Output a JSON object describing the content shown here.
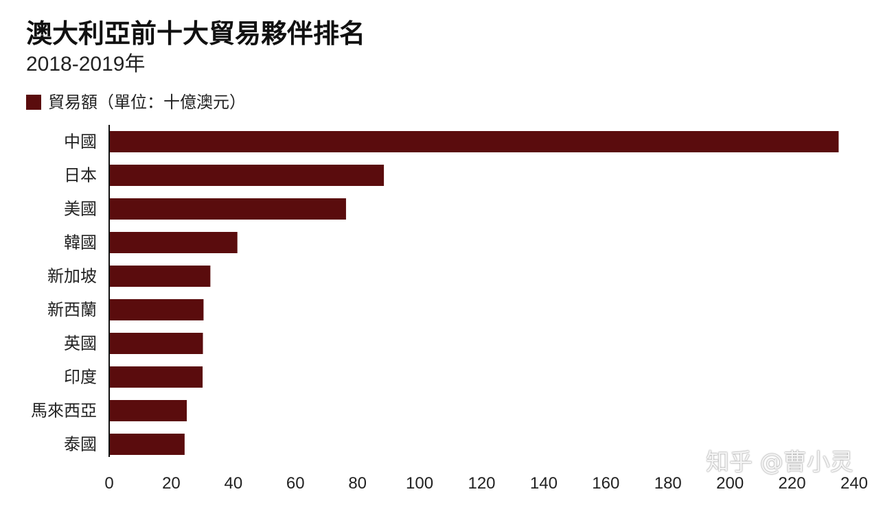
{
  "chart_data": {
    "type": "bar",
    "orientation": "horizontal",
    "title": "澳大利亞前十大貿易夥伴排名",
    "subtitle": "2018-2019年",
    "categories": [
      "中國",
      "日本",
      "美國",
      "韓國",
      "新加坡",
      "新西蘭",
      "英國",
      "印度",
      "馬來西亞",
      "泰國"
    ],
    "series": [
      {
        "name": "貿易額（單位：十億澳元）",
        "values": [
          235,
          88.5,
          76.3,
          41.3,
          32.6,
          30.4,
          30.2,
          30.1,
          25,
          24.3
        ]
      }
    ],
    "xlim": [
      0,
      240
    ],
    "xticks": [
      0,
      20,
      40,
      60,
      80,
      100,
      120,
      140,
      160,
      180,
      200,
      220,
      240
    ],
    "grid": false,
    "legend_position": "top-left",
    "bar_color": "#5a0c0d"
  },
  "watermark": "知乎 @曹小灵"
}
